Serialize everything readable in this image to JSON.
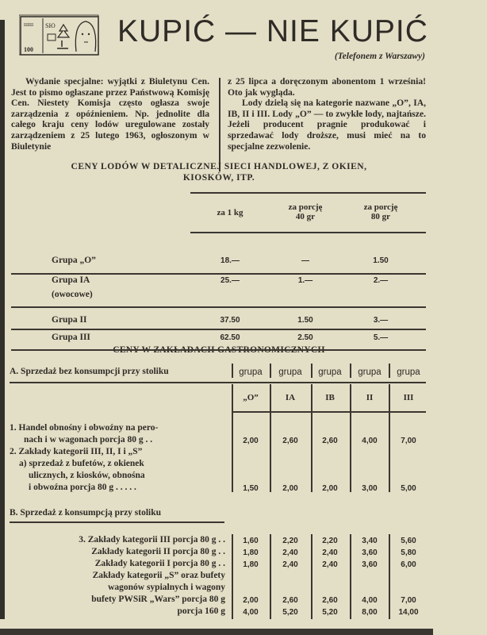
{
  "header": {
    "title": "KUPIĆ — NIE KUPIĆ",
    "subtitle": "(Telefonem z Warszawy)",
    "logo_icon": "banknote-drawing-icon",
    "logo_text": "100"
  },
  "article": {
    "lead_bold": "Wydanie specjalne:",
    "left_text": " wyjątki z Biuletynu Cen. Jest to pismo ogłaszane przez Państwową Komisję Cen. Niestety Komisja często ogłasza swoje zarządzenia z opóźnieniem. Np. jednolite dla całego kraju ceny lodów uregulowane zostały zarządzeniem z 25 lutego 1963, ogłoszonym w Biuletynie",
    "right_p1": "z 25 lipca a doręczonym abonentom 1 września! Oto jak wygląda.",
    "right_p2": "Lody dzielą się na kategorie nazwane „O”, IA, IB, II i III. Lody „O” — to zwykłe lody, najtańsze. Jeżeli producent pragnie produkować i sprzedawać lody droższe, musi mieć na to specjalne zezwolenie."
  },
  "table1": {
    "title_line1": "CENY LODÓW W DETALICZNEJ SIECI HANDLOWEJ, Z OKIEN,",
    "title_line2": "KIOSKÓW, ITP.",
    "columns": [
      {
        "line1": "za 1 kg",
        "line2": ""
      },
      {
        "line1": "za porcję",
        "line2": "40 gr"
      },
      {
        "line1": "za porcję",
        "line2": "80 gr"
      }
    ],
    "rows": [
      {
        "label": "Grupa „O”",
        "sublabel": "",
        "values": [
          "18.—",
          "—",
          "1.50"
        ]
      },
      {
        "label": "Grupa IA",
        "sublabel": "(owocowe)",
        "values": [
          "25.—",
          "1.—",
          "2.—"
        ]
      },
      {
        "label": "Grupa II",
        "sublabel": "",
        "values": [
          "37.50",
          "1.50",
          "3.—"
        ]
      },
      {
        "label": "Grupa III",
        "sublabel": "",
        "values": [
          "62.50",
          "2.50",
          "5.—"
        ]
      }
    ]
  },
  "table2": {
    "title": "CENY W ZAKŁADACH GASTRONOMICZNYCH",
    "section_a": "A. Sprzedaż bez konsumpcji przy stoliku",
    "section_b": "B. Sprzedaż z konsumpcją przy stoliku",
    "group_word": [
      "grupa",
      "grupa",
      "grupa",
      "grupa",
      "grupa"
    ],
    "groups": [
      "„O”",
      "IA",
      "IB",
      "II",
      "III"
    ],
    "rows_a": [
      {
        "lines": [
          "1. Handel obnośny i obwoźny na pero-",
          "nach i w wagonach porcja 80 g . ."
        ],
        "values": [
          "2,00",
          "2,60",
          "2,60",
          "4,00",
          "7,00"
        ]
      },
      {
        "lines": [
          "2. Zakłady kategorii III, II, I i „S”",
          "a) sprzedaż z bufetów, z okienek",
          "ulicznych, z kiosków, obnośna",
          "i obwoźna porcja 80 g . . . . ."
        ],
        "values": [
          "1,50",
          "2,00",
          "2,00",
          "3,00",
          "5,00"
        ]
      }
    ],
    "rows_b": [
      {
        "label": "3. Zakłady kategorii III porcja 80 g . .",
        "values": [
          "1,60",
          "2,20",
          "2,20",
          "3,40",
          "5,60"
        ]
      },
      {
        "label": "Zakłady kategorii II porcja 80 g . .",
        "values": [
          "1,80",
          "2,40",
          "2,40",
          "3,60",
          "5,80"
        ]
      },
      {
        "label": "Zakłady kategorii I porcja 80 g . .",
        "values": [
          "1,80",
          "2,40",
          "2,40",
          "3,60",
          "6,00"
        ]
      },
      {
        "label": "Zakłady kategorii „S” oraz bufety",
        "values": []
      },
      {
        "label": "wagonów sypialnych i wagony",
        "values": []
      },
      {
        "label": "bufety PWSiR „Wars” porcja 80 g",
        "values": [
          "2,00",
          "2,60",
          "2,60",
          "4,00",
          "7,00"
        ]
      },
      {
        "label": "porcja 160 g",
        "values": [
          "4,00",
          "5,20",
          "5,20",
          "8,00",
          "14,00"
        ]
      }
    ]
  }
}
